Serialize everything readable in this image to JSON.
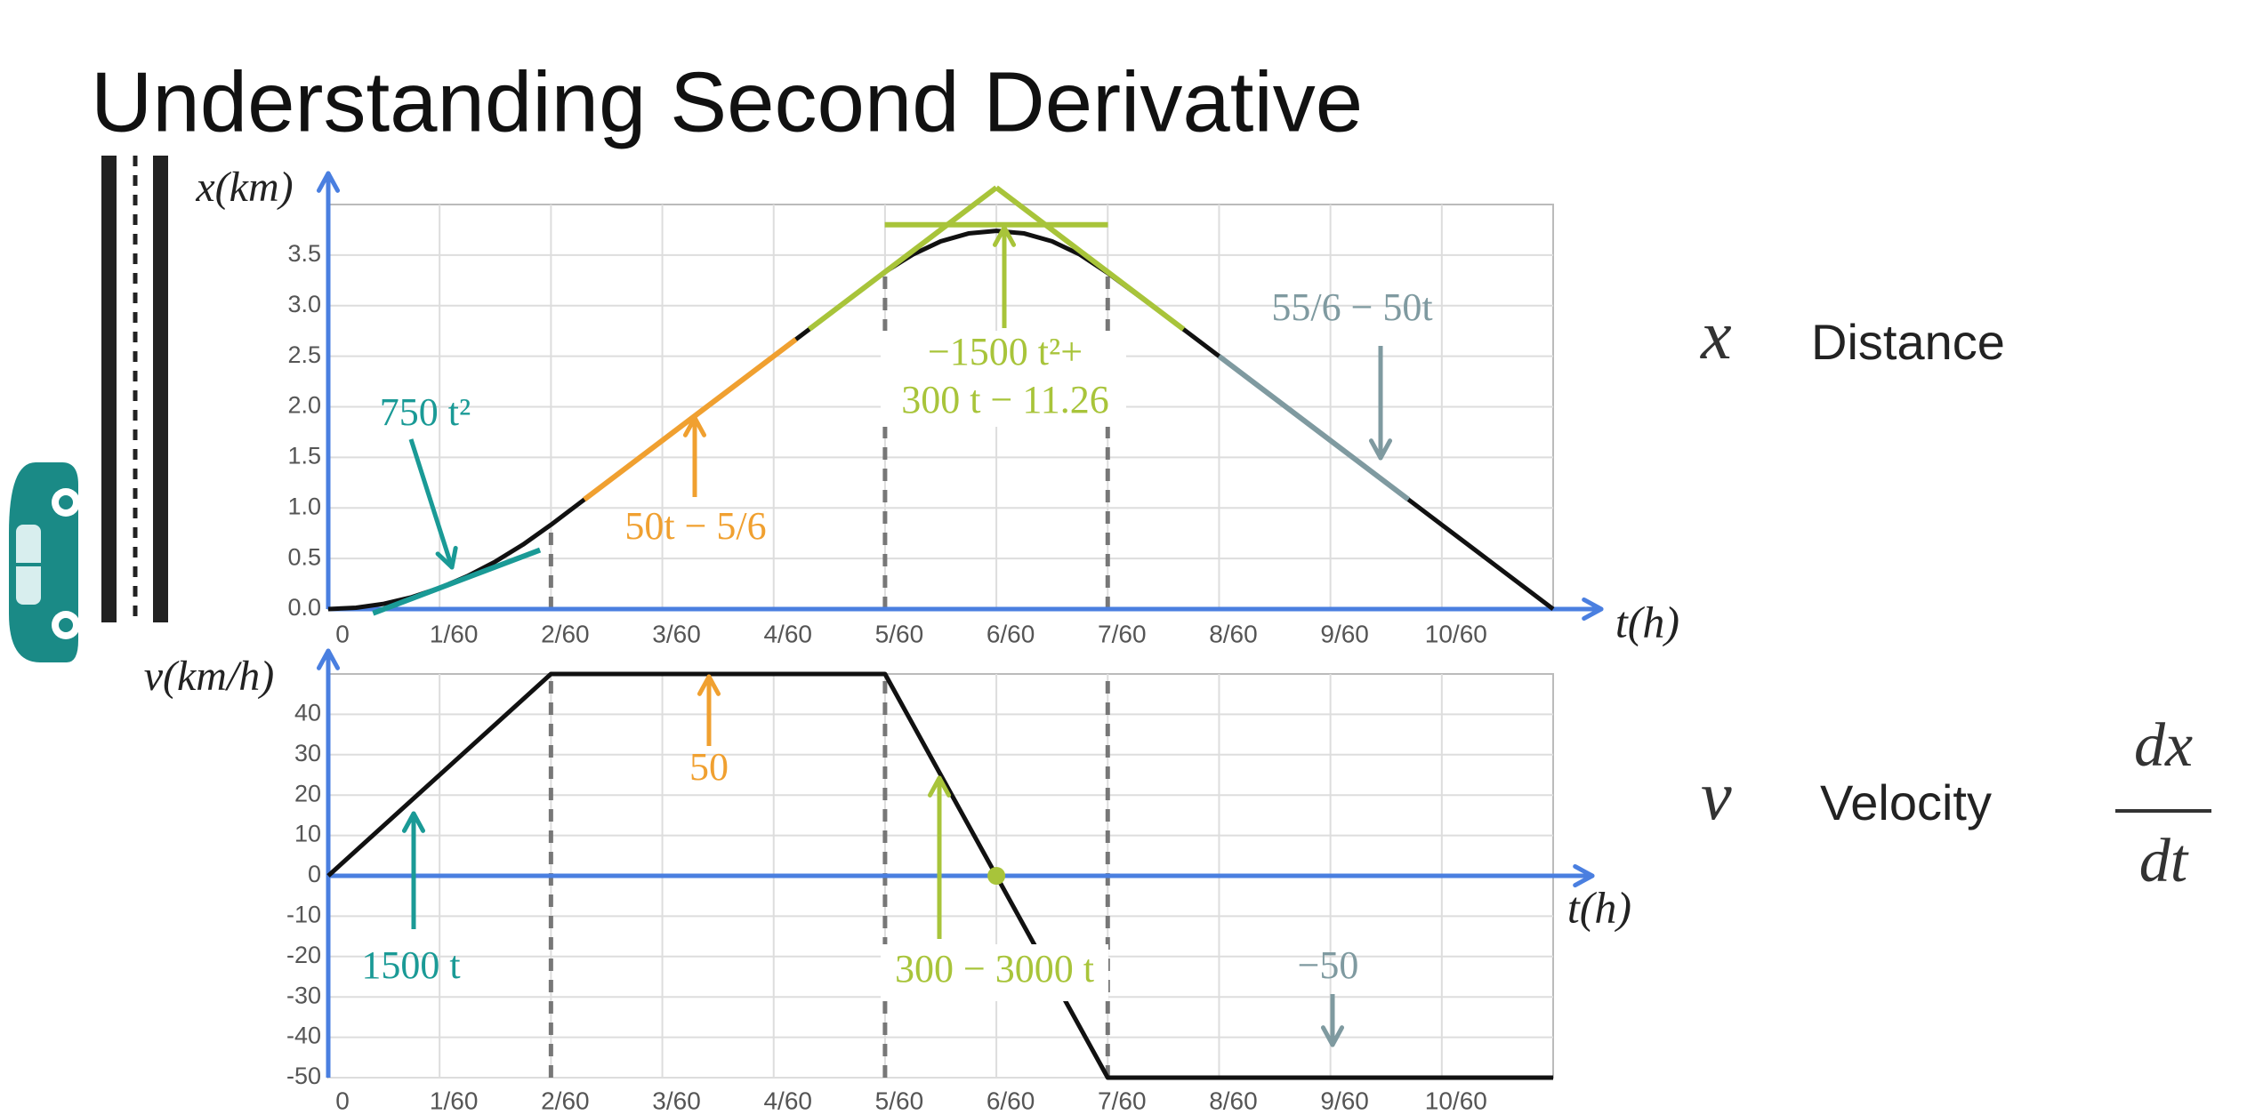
{
  "title": "Understanding Second Derivative",
  "side_labels": {
    "distance_symbol": "x",
    "distance": "Distance",
    "velocity_symbol": "v",
    "velocity": "Velocity",
    "derivative_num": "dx",
    "derivative_den": "dt"
  },
  "chart_data": [
    {
      "type": "line",
      "y_label": "x(km)",
      "x_label": "t(h)",
      "grid": true,
      "axis_color": "#4a7fe0",
      "xlim": [
        0,
        0.183333
      ],
      "ylim": [
        0,
        4
      ],
      "xticks": [
        0,
        {
          "value": 0.016667,
          "label": "1/60"
        },
        {
          "value": 0.033333,
          "label": "2/60"
        },
        {
          "value": 0.05,
          "label": "3/60"
        },
        {
          "value": 0.066667,
          "label": "4/60"
        },
        {
          "value": 0.083333,
          "label": "5/60"
        },
        {
          "value": 0.1,
          "label": "6/60"
        },
        {
          "value": 0.116667,
          "label": "7/60"
        },
        {
          "value": 0.133333,
          "label": "8/60"
        },
        {
          "value": 0.15,
          "label": "9/60"
        },
        {
          "value": 0.166667,
          "label": "10/60"
        }
      ],
      "yticks": [
        {
          "value": 0,
          "label": "0.0"
        },
        0.5,
        {
          "value": 1,
          "label": "1.0"
        },
        1.5,
        {
          "value": 2,
          "label": "2.0"
        },
        2.5,
        {
          "value": 3,
          "label": "3.0"
        },
        3.5
      ],
      "series": [
        {
          "color": "#111111",
          "x": [
            0,
            0.004167,
            0.008333,
            0.0125,
            0.016667,
            0.020833,
            0.025,
            0.029167,
            0.033333,
            0.041667,
            0.05,
            0.058333,
            0.066667,
            0.075,
            0.083333,
            0.0875,
            0.091667,
            0.095833,
            0.1,
            0.104167,
            0.108333,
            0.1125,
            0.116667,
            0.125,
            0.133333,
            0.141667,
            0.15,
            0.158333,
            0.166667,
            0.175,
            0.183333
          ],
          "values": [
            0,
            0.013,
            0.0521,
            0.1172,
            0.2083,
            0.3255,
            0.4688,
            0.638,
            0.8333,
            1.25,
            1.6667,
            2.0833,
            2.5,
            2.9167,
            3.3333,
            3.5059,
            3.6358,
            3.7139,
            3.74,
            3.714,
            3.636,
            3.5056,
            3.323,
            2.9167,
            2.5,
            2.0833,
            1.6667,
            1.25,
            0.8333,
            0.4167,
            0
          ]
        },
        {
          "color": "#1a9a96",
          "x": [
            0.0067,
            0.0317
          ],
          "values": [
            -0.0408,
            0.5842
          ]
        },
        {
          "color": "#f0a030",
          "x": [
            0.038333,
            0.07
          ],
          "values": [
            1.0833,
            2.6667
          ]
        },
        {
          "color": "#7f9aa0",
          "x": [
            0.133333,
            0.161667
          ],
          "values": [
            2.5,
            1.0833
          ]
        },
        {
          "color": "#a8c43a",
          "x": [
            0.072,
            0.1
          ],
          "values": [
            2.7667,
            4.1667
          ]
        },
        {
          "color": "#a8c43a",
          "x": [
            0.1,
            0.128
          ],
          "values": [
            4.1667,
            2.7667
          ]
        },
        {
          "color": "#a8c43a",
          "x": [
            0.0833,
            0.1167
          ],
          "values": [
            3.8,
            3.8
          ]
        }
      ],
      "guides": {
        "x": [
          0.033333,
          0.083333,
          0.116667
        ],
        "values": [
          0.8333,
          3.3333,
          3.323
        ]
      },
      "annotations": [
        {
          "text": [
            "750 t²"
          ],
          "color": "#1a9a96"
        },
        {
          "text": [
            "50t − 5/6"
          ],
          "color": "#f0a030"
        },
        {
          "text": [
            "−1500 t²+",
            "300 t − 11.26"
          ],
          "color": "#a8c43a"
        },
        {
          "text": [
            "55/6 − 50t"
          ],
          "color": "#7f9aa0"
        }
      ]
    },
    {
      "type": "line",
      "y_label": "v(km/h)",
      "x_label": "t(h)",
      "grid": true,
      "axis_color": "#4a7fe0",
      "xlim": [
        0,
        0.183333
      ],
      "ylim": [
        -50,
        50
      ],
      "xticks": [
        0,
        {
          "value": 0.016667,
          "label": "1/60"
        },
        {
          "value": 0.033333,
          "label": "2/60"
        },
        {
          "value": 0.05,
          "label": "3/60"
        },
        {
          "value": 0.066667,
          "label": "4/60"
        },
        {
          "value": 0.083333,
          "label": "5/60"
        },
        {
          "value": 0.1,
          "label": "6/60"
        },
        {
          "value": 0.116667,
          "label": "7/60"
        },
        {
          "value": 0.133333,
          "label": "8/60"
        },
        {
          "value": 0.15,
          "label": "9/60"
        },
        {
          "value": 0.166667,
          "label": "10/60"
        }
      ],
      "yticks": [
        -50,
        -40,
        -30,
        -20,
        -10,
        0,
        10,
        20,
        30,
        40
      ],
      "series": [
        {
          "color": "#111111",
          "x": [
            0,
            0.033333,
            0.083333,
            0.116667,
            0.183333
          ],
          "values": [
            0,
            50,
            50,
            -50,
            -50
          ]
        },
        {
          "color": "#a8c43a",
          "marker": "dot",
          "x": [
            0.1
          ],
          "values": [
            0
          ]
        }
      ],
      "guides": {
        "x": [
          0.033333,
          0.083333,
          0.116667
        ]
      },
      "annotations": [
        {
          "text": [
            "1500 t"
          ],
          "color": "#1a9a96"
        },
        {
          "text": [
            "50"
          ],
          "color": "#f0a030"
        },
        {
          "text": [
            "300 − 3000 t"
          ],
          "color": "#a8c43a"
        },
        {
          "text": [
            "−50"
          ],
          "color": "#7f9aa0"
        }
      ]
    }
  ]
}
